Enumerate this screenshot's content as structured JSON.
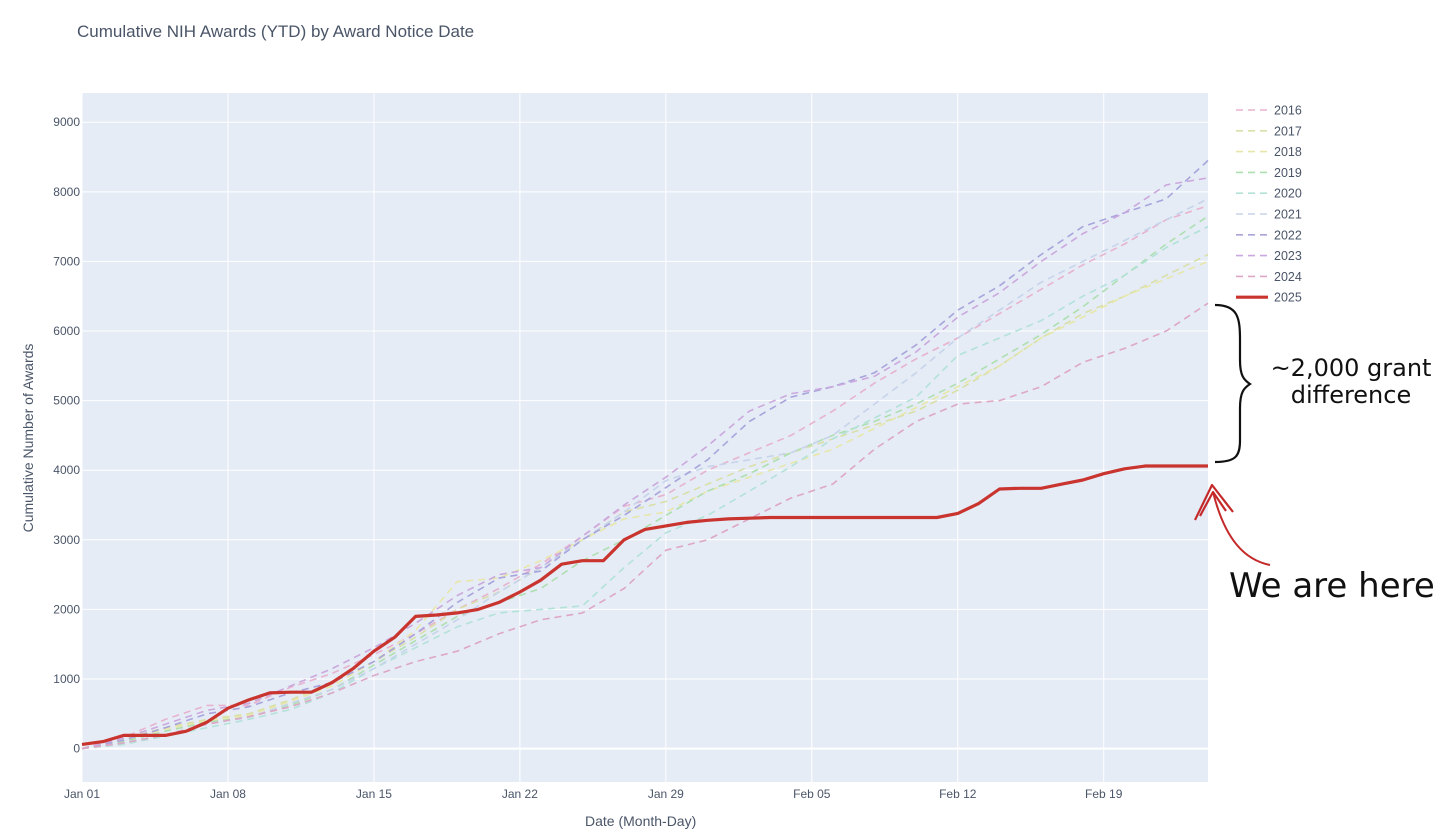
{
  "chart_data": {
    "type": "line",
    "title": "Cumulative NIH Awards (YTD) by Award Notice Date",
    "xlabel": "Date (Month-Day)",
    "ylabel": "Cumulative Number of Awards",
    "x_tick_labels": [
      "Jan 01",
      "Jan 08",
      "Jan 15",
      "Jan 22",
      "Jan 29",
      "Feb 05",
      "Feb 12",
      "Feb 19"
    ],
    "x_tick_days": [
      0,
      7,
      14,
      21,
      28,
      35,
      42,
      49
    ],
    "xlim": [
      0,
      54
    ],
    "ylim": [
      -480,
      9420
    ],
    "y_ticks": [
      0,
      1000,
      2000,
      3000,
      4000,
      5000,
      6000,
      7000,
      8000,
      9000
    ],
    "grid": true,
    "legend_position": "right",
    "series": [
      {
        "name": "2016",
        "color": "#e7b3cf",
        "dash": true,
        "x": [
          0,
          2,
          4,
          6,
          8,
          10,
          12,
          14,
          16,
          18,
          20,
          22,
          24,
          26,
          28,
          30,
          32,
          34,
          36,
          38,
          40,
          42,
          44,
          46,
          48,
          50,
          52,
          54
        ],
        "y": [
          0,
          160,
          420,
          620,
          620,
          880,
          1080,
          1350,
          1650,
          2000,
          2300,
          2650,
          3050,
          3480,
          3650,
          4000,
          4250,
          4500,
          4850,
          5250,
          5600,
          5900,
          6250,
          6600,
          6950,
          7250,
          7600,
          7800
        ]
      },
      {
        "name": "2017",
        "color": "#d8dfa7",
        "dash": true,
        "x": [
          0,
          2,
          4,
          6,
          8,
          10,
          12,
          14,
          16,
          18,
          20,
          22,
          24,
          26,
          28,
          30,
          32,
          34,
          36,
          38,
          40,
          42,
          44,
          46,
          48,
          50,
          52,
          54
        ],
        "y": [
          0,
          140,
          300,
          420,
          500,
          700,
          950,
          1250,
          1600,
          2000,
          2250,
          2600,
          3000,
          3400,
          3550,
          3800,
          4050,
          4250,
          4450,
          4650,
          4850,
          5150,
          5500,
          5900,
          6250,
          6500,
          6800,
          7100
        ]
      },
      {
        "name": "2018",
        "color": "#e7e7aa",
        "dash": true,
        "x": [
          0,
          2,
          4,
          6,
          8,
          10,
          12,
          14,
          16,
          18,
          20,
          22,
          24,
          26,
          28,
          30,
          32,
          34,
          36,
          38,
          40,
          42,
          44,
          46,
          48,
          50,
          52,
          54
        ],
        "y": [
          0,
          120,
          280,
          400,
          480,
          680,
          900,
          1250,
          1700,
          2400,
          2450,
          2700,
          3000,
          3300,
          3400,
          3700,
          3900,
          4100,
          4300,
          4600,
          4900,
          5200,
          5500,
          5900,
          6200,
          6500,
          6750,
          7000
        ]
      },
      {
        "name": "2019",
        "color": "#aedfb0",
        "dash": true,
        "x": [
          0,
          2,
          4,
          6,
          8,
          10,
          12,
          14,
          16,
          18,
          20,
          22,
          24,
          26,
          28,
          30,
          32,
          34,
          36,
          38,
          40,
          42,
          44,
          46,
          48,
          50,
          52,
          54
        ],
        "y": [
          0,
          100,
          250,
          380,
          450,
          620,
          850,
          1200,
          1550,
          1900,
          2100,
          2300,
          2700,
          3000,
          3350,
          3700,
          3950,
          4250,
          4500,
          4700,
          4950,
          5250,
          5600,
          5950,
          6350,
          6800,
          7250,
          7650
        ]
      },
      {
        "name": "2020",
        "color": "#b3e2d8",
        "dash": true,
        "x": [
          0,
          2,
          4,
          6,
          8,
          10,
          12,
          14,
          16,
          18,
          20,
          22,
          24,
          26,
          28,
          30,
          32,
          34,
          36,
          38,
          40,
          42,
          44,
          46,
          48,
          50,
          52,
          54
        ],
        "y": [
          0,
          60,
          180,
          300,
          420,
          560,
          800,
          1150,
          1450,
          1750,
          1950,
          2000,
          2050,
          2600,
          3100,
          3350,
          3700,
          4050,
          4450,
          4750,
          5050,
          5650,
          5900,
          6150,
          6500,
          6800,
          7200,
          7500
        ]
      },
      {
        "name": "2021",
        "color": "#c6d3ea",
        "dash": true,
        "x": [
          0,
          2,
          4,
          6,
          8,
          10,
          12,
          14,
          16,
          18,
          20,
          22,
          24,
          26,
          28,
          30,
          32,
          34,
          36,
          38,
          40,
          42,
          44,
          46,
          48,
          50,
          52,
          54
        ],
        "y": [
          0,
          80,
          200,
          350,
          450,
          650,
          850,
          1150,
          1500,
          1850,
          2250,
          2600,
          3000,
          3400,
          3850,
          4050,
          4150,
          4250,
          4500,
          4950,
          5400,
          5900,
          6300,
          6700,
          7000,
          7300,
          7600,
          7900
        ]
      },
      {
        "name": "2022",
        "color": "#a9a4db",
        "dash": true,
        "x": [
          0,
          2,
          4,
          6,
          8,
          10,
          12,
          14,
          16,
          18,
          20,
          22,
          24,
          26,
          28,
          30,
          32,
          34,
          36,
          38,
          40,
          42,
          44,
          46,
          48,
          50,
          52,
          54
        ],
        "y": [
          0,
          120,
          300,
          500,
          600,
          800,
          950,
          1250,
          1650,
          2100,
          2450,
          2550,
          3000,
          3350,
          3750,
          4150,
          4700,
          5050,
          5200,
          5400,
          5800,
          6300,
          6650,
          7100,
          7500,
          7700,
          7900,
          8450
        ]
      },
      {
        "name": "2023",
        "color": "#cba8dd",
        "dash": true,
        "x": [
          0,
          2,
          4,
          6,
          8,
          10,
          12,
          14,
          16,
          18,
          20,
          22,
          24,
          26,
          28,
          30,
          32,
          34,
          36,
          38,
          40,
          42,
          44,
          46,
          48,
          50,
          52,
          54
        ],
        "y": [
          0,
          150,
          350,
          550,
          650,
          900,
          1150,
          1450,
          1800,
          2200,
          2500,
          2600,
          3050,
          3500,
          3900,
          4350,
          4850,
          5100,
          5200,
          5350,
          5700,
          6200,
          6550,
          7000,
          7400,
          7700,
          8100,
          8200
        ]
      },
      {
        "name": "2024",
        "color": "#dda7c5",
        "dash": true,
        "x": [
          0,
          2,
          4,
          6,
          8,
          10,
          12,
          14,
          16,
          18,
          20,
          22,
          24,
          26,
          28,
          30,
          32,
          34,
          36,
          38,
          40,
          42,
          44,
          46,
          48,
          50,
          52,
          54
        ],
        "y": [
          0,
          80,
          200,
          350,
          460,
          600,
          800,
          1050,
          1250,
          1400,
          1650,
          1850,
          1950,
          2300,
          2850,
          3000,
          3300,
          3600,
          3800,
          4300,
          4700,
          4950,
          5000,
          5200,
          5550,
          5750,
          6000,
          6400
        ]
      },
      {
        "name": "2025",
        "color": "#c9342f",
        "dash": false,
        "x": [
          0,
          1,
          2,
          3,
          4,
          5,
          6,
          7,
          8,
          9,
          10,
          11,
          12,
          13,
          14,
          15,
          16,
          17,
          18,
          19,
          20,
          21,
          22,
          23,
          24,
          25,
          26,
          27,
          28,
          29,
          30,
          31,
          32,
          33,
          34,
          35,
          36,
          37,
          38,
          39,
          40,
          41,
          42,
          43,
          44,
          45,
          46,
          47,
          48,
          49,
          50,
          51,
          52,
          53,
          54
        ],
        "y": [
          60,
          100,
          190,
          190,
          190,
          250,
          380,
          580,
          700,
          800,
          810,
          810,
          950,
          1150,
          1400,
          1600,
          1900,
          1920,
          1950,
          2000,
          2100,
          2250,
          2420,
          2650,
          2700,
          2700,
          3000,
          3150,
          3200,
          3250,
          3280,
          3300,
          3310,
          3320,
          3320,
          3320,
          3320,
          3320,
          3320,
          3320,
          3320,
          3320,
          3380,
          3520,
          3730,
          3740,
          3740,
          3800,
          3860,
          3950,
          4020,
          4060,
          4060,
          4060,
          4060
        ]
      }
    ],
    "annotations": [
      "~2,000 grant difference",
      "We are here"
    ]
  }
}
